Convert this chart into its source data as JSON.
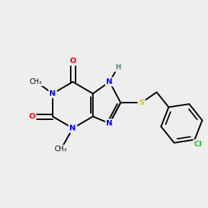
{
  "background_color": "#eeeeee",
  "bond_color": "#000000",
  "atom_colors": {
    "N": "#0000ff",
    "O": "#ff0000",
    "S": "#cccc00",
    "Cl": "#33bb33",
    "C": "#000000",
    "H": "#558888"
  },
  "figsize": [
    3.0,
    3.0
  ],
  "dpi": 100
}
